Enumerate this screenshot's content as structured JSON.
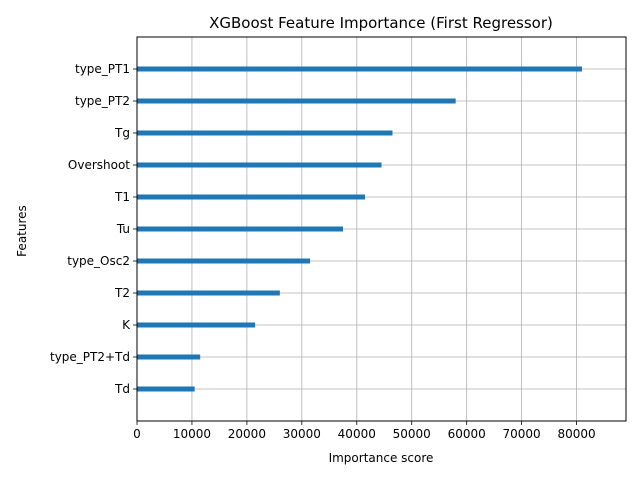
{
  "chart_data": {
    "type": "bar",
    "orientation": "horizontal",
    "title": "XGBoost Feature Importance (First Regressor)",
    "xlabel": "Importance score",
    "ylabel": "Features",
    "categories": [
      "type_PT1",
      "type_PT2",
      "Tg",
      "Overshoot",
      "T1",
      "Tu",
      "type_Osc2",
      "T2",
      "K",
      "type_PT2+Td",
      "Td"
    ],
    "values": [
      81000,
      58000,
      46500,
      44500,
      41500,
      37500,
      31500,
      26000,
      21500,
      11500,
      10500
    ],
    "xlim": [
      0,
      89000
    ],
    "xticks": [
      0,
      10000,
      20000,
      30000,
      40000,
      50000,
      60000,
      70000,
      80000
    ],
    "xtick_labels": [
      "0",
      "10000",
      "20000",
      "30000",
      "40000",
      "50000",
      "60000",
      "70000",
      "80000"
    ],
    "grid": true,
    "bar_color": "#1f77b4",
    "grid_color": "#b0b0b0"
  }
}
